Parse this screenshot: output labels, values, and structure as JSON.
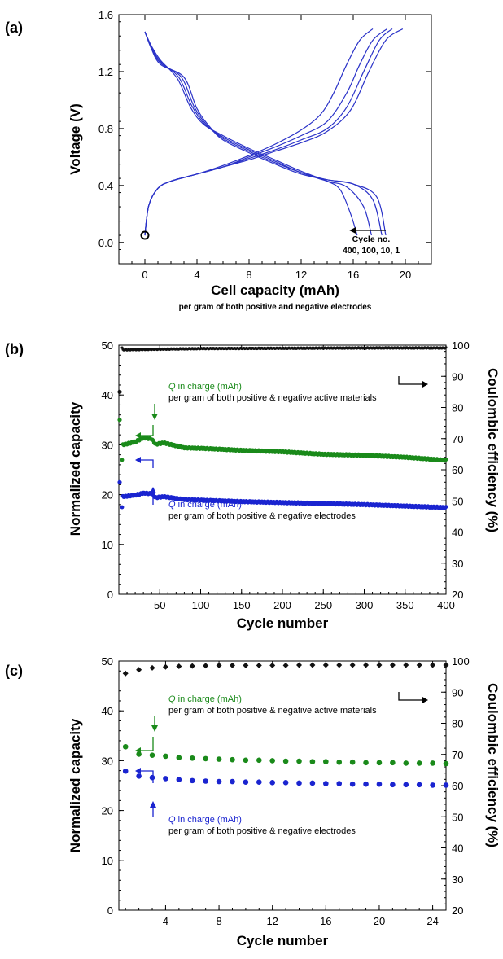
{
  "chart_data": [
    {
      "panel": "(a)",
      "type": "line",
      "xlabel": "Cell capacity (mAh)",
      "xlabel_sub": "per gram of both positive and negative electrodes",
      "ylabel": "Voltage (V)",
      "xlim": [
        -2,
        22
      ],
      "ylim": [
        -0.15,
        1.6
      ],
      "x_ticks": [
        0,
        4,
        8,
        12,
        16,
        20
      ],
      "y_ticks": [
        0.0,
        0.4,
        0.8,
        1.2,
        1.6
      ],
      "line_color": "#2a32c8",
      "annotation": {
        "line1": "Cycle no.",
        "line2": "400, 100, 10, 1",
        "arrow_from": [
          18.5,
          0.05
        ],
        "arrow_to": [
          15.7,
          0.05
        ]
      },
      "start_marker": {
        "x": 0,
        "y": 0.05
      },
      "charge_curves": [
        {
          "cycle": 400,
          "points": [
            [
              0,
              0.05
            ],
            [
              0.3,
              0.26
            ],
            [
              1,
              0.38
            ],
            [
              2,
              0.43
            ],
            [
              4,
              0.48
            ],
            [
              6,
              0.54
            ],
            [
              8,
              0.61
            ],
            [
              10,
              0.69
            ],
            [
              12,
              0.79
            ],
            [
              13.5,
              0.9
            ],
            [
              14.5,
              1.05
            ],
            [
              15.5,
              1.25
            ],
            [
              16.5,
              1.42
            ],
            [
              17.5,
              1.5
            ]
          ]
        },
        {
          "cycle": 100,
          "points": [
            [
              0,
              0.05
            ],
            [
              0.3,
              0.26
            ],
            [
              1,
              0.38
            ],
            [
              2,
              0.43
            ],
            [
              4,
              0.48
            ],
            [
              6,
              0.53
            ],
            [
              8,
              0.6
            ],
            [
              10,
              0.67
            ],
            [
              12,
              0.75
            ],
            [
              14,
              0.85
            ],
            [
              15.5,
              1.05
            ],
            [
              16.5,
              1.25
            ],
            [
              17.5,
              1.42
            ],
            [
              18.6,
              1.5
            ]
          ]
        },
        {
          "cycle": 10,
          "points": [
            [
              0,
              0.05
            ],
            [
              0.3,
              0.26
            ],
            [
              1,
              0.38
            ],
            [
              2,
              0.43
            ],
            [
              4,
              0.48
            ],
            [
              6,
              0.53
            ],
            [
              8,
              0.59
            ],
            [
              10,
              0.65
            ],
            [
              12,
              0.72
            ],
            [
              14,
              0.8
            ],
            [
              15.5,
              0.95
            ],
            [
              16.8,
              1.2
            ],
            [
              18,
              1.42
            ],
            [
              19,
              1.5
            ]
          ]
        },
        {
          "cycle": 1,
          "points": [
            [
              0,
              0.05
            ],
            [
              0.3,
              0.26
            ],
            [
              1,
              0.38
            ],
            [
              2,
              0.43
            ],
            [
              4,
              0.48
            ],
            [
              6,
              0.53
            ],
            [
              8,
              0.58
            ],
            [
              10,
              0.64
            ],
            [
              12,
              0.7
            ],
            [
              14,
              0.78
            ],
            [
              15.8,
              0.93
            ],
            [
              17.2,
              1.2
            ],
            [
              18.5,
              1.42
            ],
            [
              19.8,
              1.5
            ]
          ]
        }
      ],
      "discharge_curves": [
        {
          "cycle": 400,
          "points": [
            [
              0,
              1.48
            ],
            [
              0.5,
              1.38
            ],
            [
              1.2,
              1.28
            ],
            [
              2.5,
              1.15
            ],
            [
              3.5,
              0.95
            ],
            [
              4.5,
              0.83
            ],
            [
              6,
              0.75
            ],
            [
              8,
              0.66
            ],
            [
              10,
              0.58
            ],
            [
              12,
              0.5
            ],
            [
              14,
              0.43
            ],
            [
              15,
              0.37
            ],
            [
              15.8,
              0.2
            ],
            [
              16.3,
              0.05
            ]
          ]
        },
        {
          "cycle": 100,
          "points": [
            [
              0,
              1.48
            ],
            [
              0.5,
              1.37
            ],
            [
              1.2,
              1.27
            ],
            [
              2.6,
              1.16
            ],
            [
              3.6,
              0.96
            ],
            [
              4.6,
              0.83
            ],
            [
              6,
              0.74
            ],
            [
              8,
              0.65
            ],
            [
              10,
              0.57
            ],
            [
              12,
              0.49
            ],
            [
              14,
              0.43
            ],
            [
              15.5,
              0.39
            ],
            [
              16.8,
              0.25
            ],
            [
              17.4,
              0.05
            ]
          ]
        },
        {
          "cycle": 10,
          "points": [
            [
              0,
              1.48
            ],
            [
              0.5,
              1.37
            ],
            [
              1.2,
              1.26
            ],
            [
              2.8,
              1.16
            ],
            [
              3.8,
              0.95
            ],
            [
              4.8,
              0.82
            ],
            [
              6,
              0.73
            ],
            [
              8,
              0.64
            ],
            [
              10,
              0.56
            ],
            [
              12,
              0.49
            ],
            [
              14,
              0.44
            ],
            [
              16,
              0.41
            ],
            [
              17.5,
              0.3
            ],
            [
              18.2,
              0.05
            ]
          ]
        },
        {
          "cycle": 1,
          "points": [
            [
              0,
              1.48
            ],
            [
              0.5,
              1.36
            ],
            [
              1.2,
              1.25
            ],
            [
              3,
              1.16
            ],
            [
              4,
              0.94
            ],
            [
              5,
              0.81
            ],
            [
              6,
              0.72
            ],
            [
              8,
              0.63
            ],
            [
              10,
              0.55
            ],
            [
              12,
              0.48
            ],
            [
              14,
              0.44
            ],
            [
              16,
              0.41
            ],
            [
              17.8,
              0.32
            ],
            [
              18.5,
              0.05
            ]
          ]
        }
      ]
    },
    {
      "panel": "(b)",
      "type": "scatter",
      "xlabel": "Cycle number",
      "ylabel": "Normalized capacity",
      "y2label": "Coulombic efficiency (%)",
      "xlim": [
        0,
        400
      ],
      "ylim": [
        0,
        50
      ],
      "y2lim": [
        20,
        100
      ],
      "x_ticks": [
        50,
        100,
        150,
        200,
        250,
        300,
        350,
        400
      ],
      "y_ticks": [
        0,
        10,
        20,
        30,
        40,
        50
      ],
      "y2_ticks": [
        20,
        30,
        40,
        50,
        60,
        70,
        80,
        90,
        100
      ],
      "series": [
        {
          "name_prefix": "Q",
          "name": " in charge (mAh)",
          "name_line2": "per gram of both positive & negative active materials",
          "axis": "left",
          "color": "#1a8a1a",
          "first_point": [
            1,
            35
          ],
          "points": [
            [
              5,
              30
            ],
            [
              20,
              30.6
            ],
            [
              30,
              31.4
            ],
            [
              40,
              31.2
            ],
            [
              45,
              30.1
            ],
            [
              55,
              30.4
            ],
            [
              80,
              29.4
            ],
            [
              100,
              29.3
            ],
            [
              150,
              28.9
            ],
            [
              200,
              28.6
            ],
            [
              250,
              28.1
            ],
            [
              300,
              27.9
            ],
            [
              350,
              27.5
            ],
            [
              400,
              26.9
            ]
          ]
        },
        {
          "name_prefix": "Q",
          "name": " in charge (mAh)",
          "name_line2": "per gram of both positive & negative electrodes",
          "axis": "left",
          "color": "#1a24d0",
          "first_point": [
            1,
            22.5
          ],
          "points": [
            [
              5,
              19.6
            ],
            [
              20,
              19.9
            ],
            [
              30,
              20.3
            ],
            [
              40,
              20.2
            ],
            [
              45,
              19.4
            ],
            [
              55,
              19.6
            ],
            [
              80,
              19
            ],
            [
              100,
              18.9
            ],
            [
              150,
              18.6
            ],
            [
              200,
              18.4
            ],
            [
              250,
              18.2
            ],
            [
              300,
              18
            ],
            [
              350,
              17.7
            ],
            [
              400,
              17.4
            ]
          ]
        },
        {
          "name": "Coulombic efficiency",
          "axis": "right",
          "color": "#111111",
          "first_point": [
            1,
            85
          ],
          "points": [
            [
              5,
              98.5
            ],
            [
              50,
              98.7
            ],
            [
              100,
              98.9
            ],
            [
              200,
              99
            ],
            [
              300,
              99.1
            ],
            [
              400,
              99.1
            ]
          ]
        }
      ]
    },
    {
      "panel": "(c)",
      "type": "scatter",
      "xlabel": "Cycle number",
      "ylabel": "Normalized capacity",
      "y2label": "Coulombic efficiency (%)",
      "xlim": [
        0.5,
        25
      ],
      "ylim": [
        0,
        50
      ],
      "y2lim": [
        20,
        100
      ],
      "x_ticks": [
        4,
        8,
        12,
        16,
        20,
        24
      ],
      "y_ticks": [
        0,
        10,
        20,
        30,
        40,
        50
      ],
      "y2_ticks": [
        20,
        30,
        40,
        50,
        60,
        70,
        80,
        90,
        100
      ],
      "series": [
        {
          "name_prefix": "Q",
          "name": " in charge (mAh)",
          "name_line2": "per gram of both positive & negative active materials",
          "axis": "left",
          "color": "#1a8a1a",
          "x": [
            1,
            2,
            3,
            4,
            5,
            6,
            7,
            8,
            9,
            10,
            11,
            12,
            13,
            14,
            15,
            16,
            17,
            18,
            19,
            20,
            21,
            22,
            23,
            24,
            25
          ],
          "values": [
            32.8,
            31.3,
            31.1,
            30.9,
            30.6,
            30.5,
            30.4,
            30.3,
            30.2,
            30.1,
            30.1,
            30.0,
            29.9,
            29.9,
            29.8,
            29.8,
            29.7,
            29.7,
            29.6,
            29.6,
            29.6,
            29.5,
            29.5,
            29.5,
            29.4
          ]
        },
        {
          "name_prefix": "Q",
          "name": " in charge (mAh)",
          "name_line2": "per gram of both positive & negative electrodes",
          "axis": "left",
          "color": "#1a24d0",
          "x": [
            1,
            2,
            3,
            4,
            5,
            6,
            7,
            8,
            9,
            10,
            11,
            12,
            13,
            14,
            15,
            16,
            17,
            18,
            19,
            20,
            21,
            22,
            23,
            24,
            25
          ],
          "values": [
            27.9,
            26.9,
            26.6,
            26.4,
            26.2,
            26.0,
            25.9,
            25.8,
            25.8,
            25.7,
            25.7,
            25.6,
            25.6,
            25.5,
            25.5,
            25.4,
            25.4,
            25.3,
            25.3,
            25.3,
            25.2,
            25.2,
            25.2,
            25.1,
            25.1
          ]
        },
        {
          "name": "Coulombic efficiency",
          "axis": "right",
          "color": "#111111",
          "x": [
            1,
            2,
            3,
            4,
            5,
            6,
            7,
            8,
            9,
            10,
            11,
            12,
            13,
            14,
            15,
            16,
            17,
            18,
            19,
            20,
            21,
            22,
            23,
            24,
            25
          ],
          "values": [
            96.0,
            97.2,
            97.8,
            98.1,
            98.3,
            98.4,
            98.5,
            98.6,
            98.6,
            98.6,
            98.6,
            98.6,
            98.6,
            98.7,
            98.7,
            98.7,
            98.7,
            98.7,
            98.7,
            98.7,
            98.7,
            98.7,
            98.7,
            98.7,
            98.7
          ]
        }
      ]
    }
  ]
}
